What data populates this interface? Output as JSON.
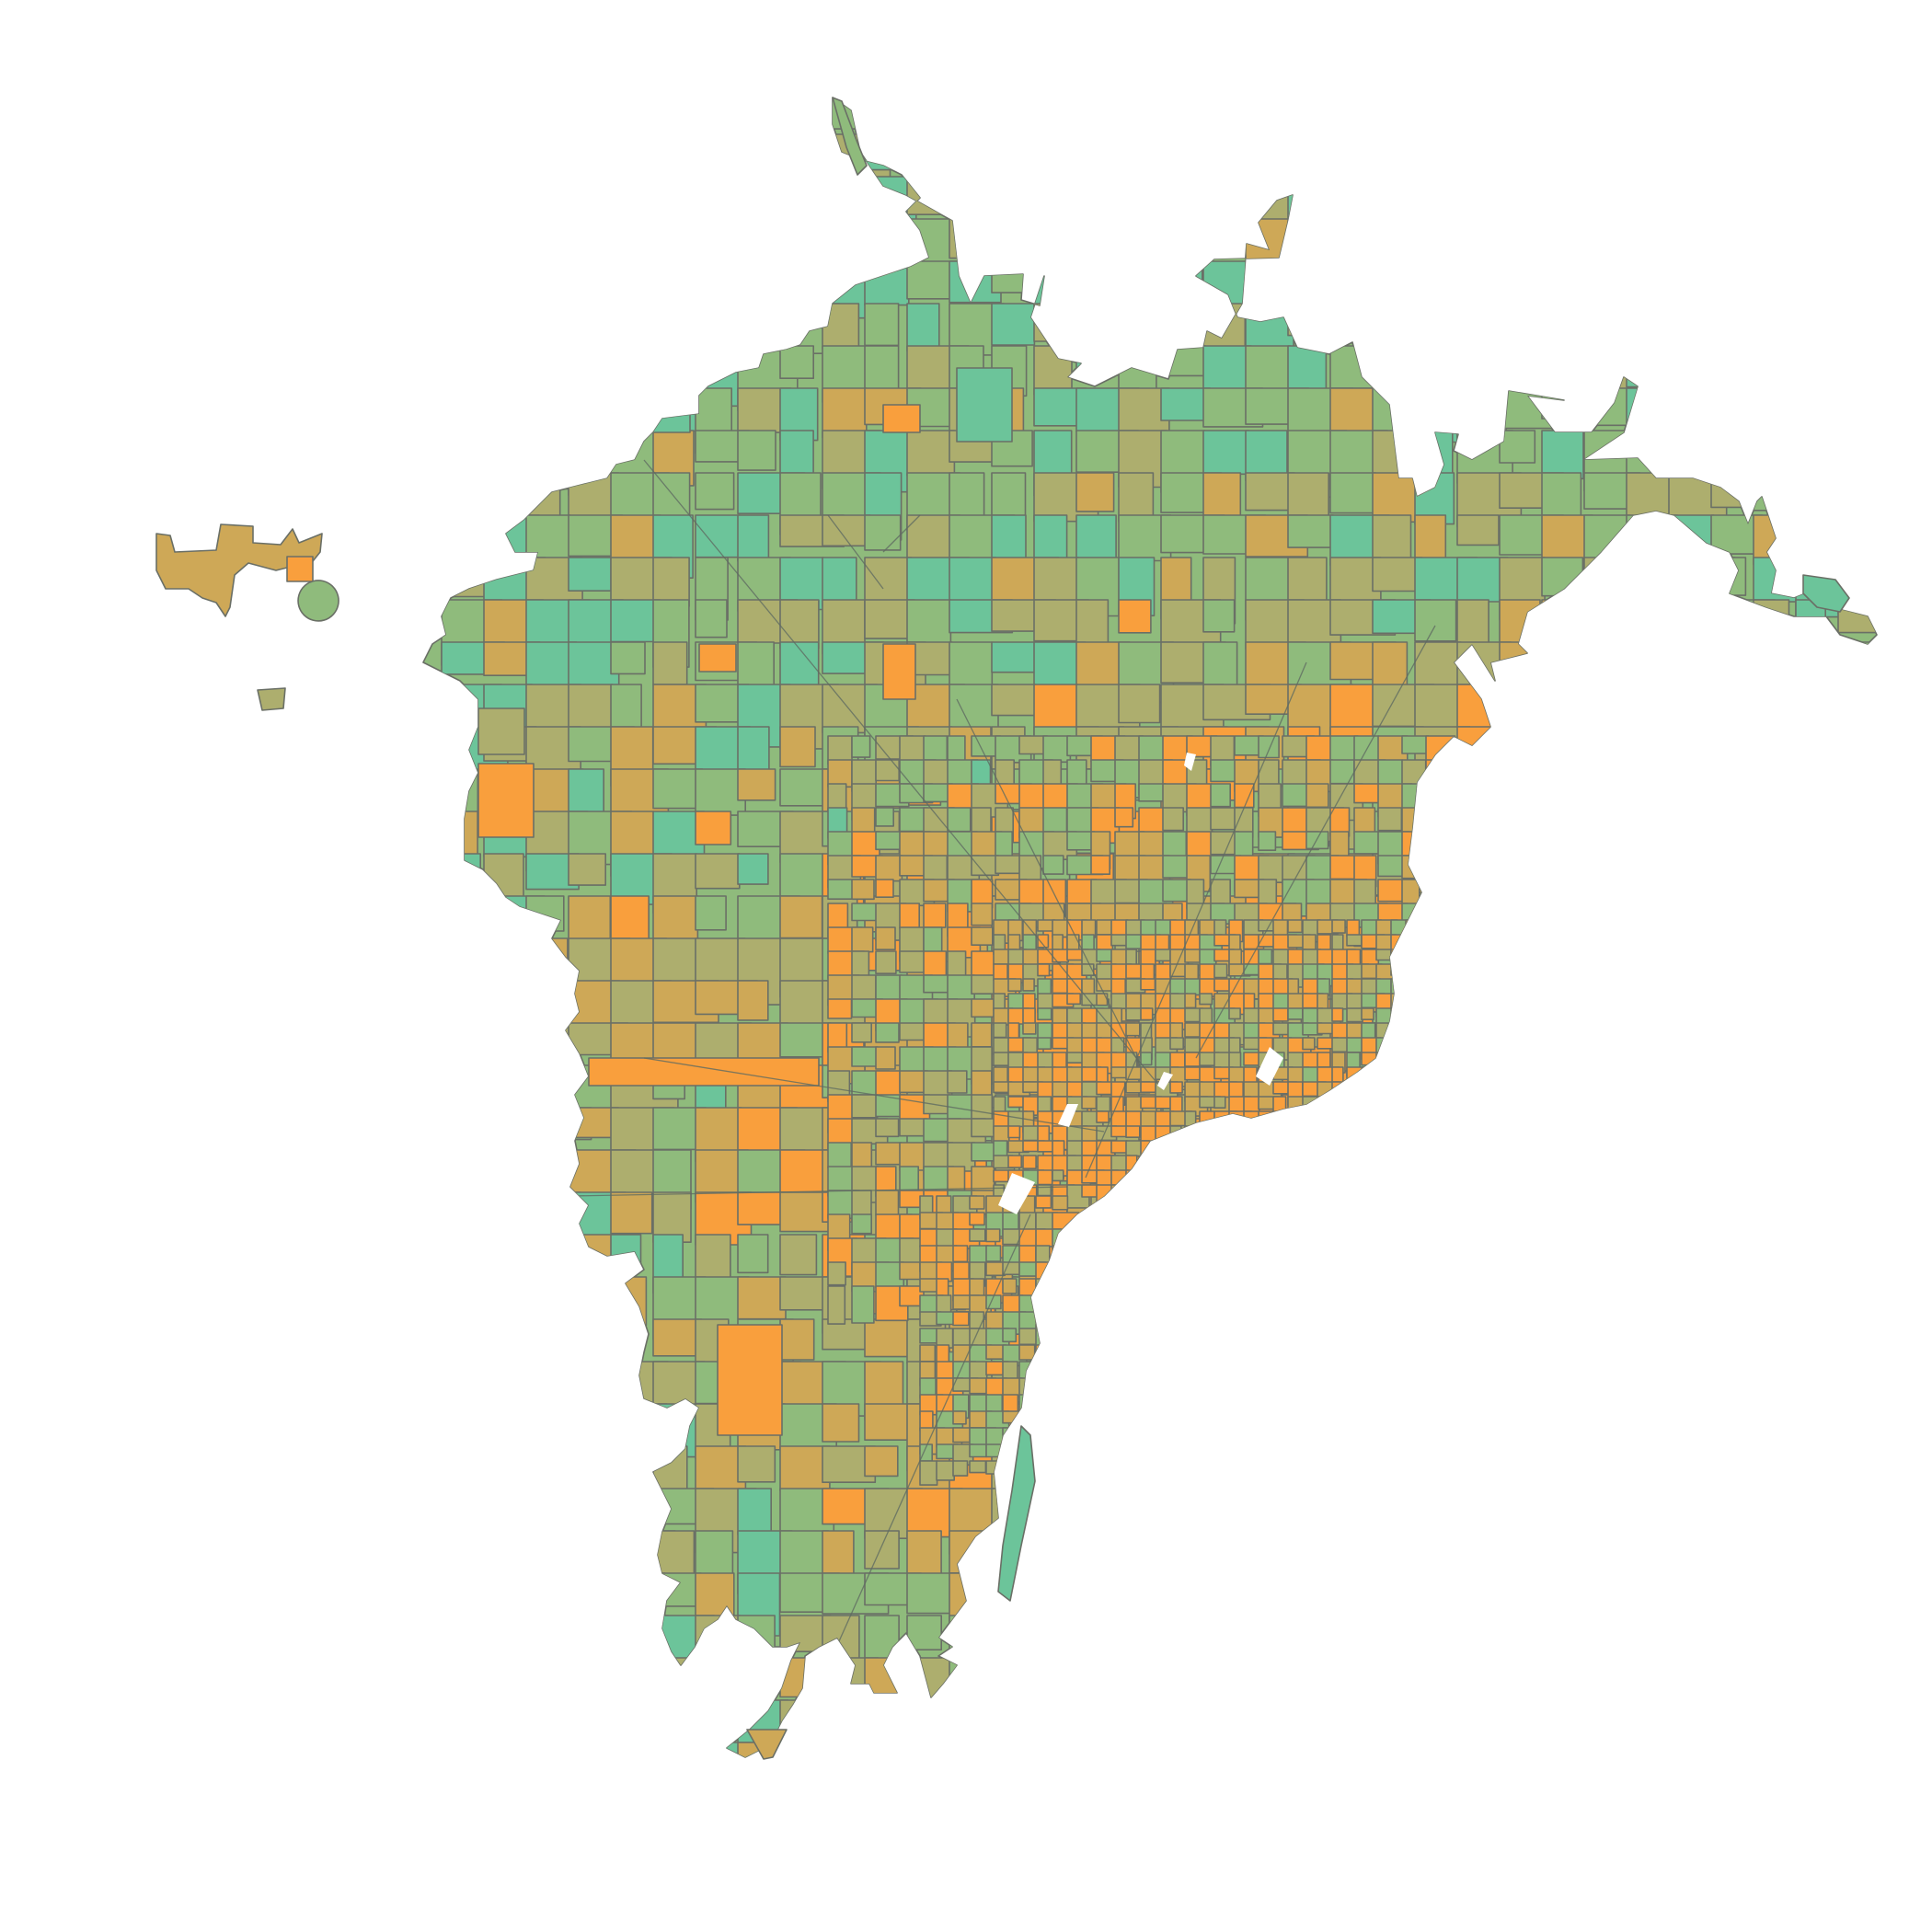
{
  "map": {
    "type": "choropleth",
    "palette": {
      "teal": "#6cc49a",
      "green": "#8fbb7c",
      "olive": "#adae6e",
      "tan": "#cea857",
      "orange": "#f99f3d"
    },
    "outline_color": "#6a6f66",
    "background": "#ffffff",
    "legend": "none",
    "title": ""
  }
}
